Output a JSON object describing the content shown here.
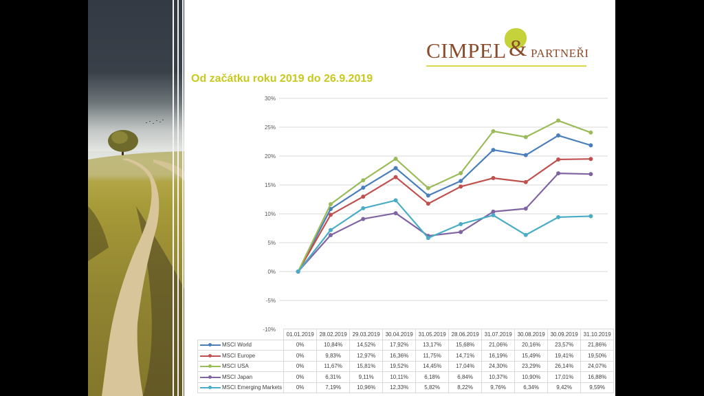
{
  "slide": {
    "title": "Od začátku roku 2019 do 26.9.2019"
  },
  "logo": {
    "brand": "CIMPEL",
    "amp": "&",
    "partners": "PARTNEŘI"
  },
  "chart_data": {
    "type": "line",
    "title": "Od začátku roku 2019 do 26.9.2019",
    "xlabel": "",
    "ylabel": "",
    "ylim": [
      -0.1,
      0.3
    ],
    "yticks": [
      "30%",
      "25%",
      "20%",
      "15%",
      "10%",
      "5%",
      "0%",
      "-5%",
      "-10%"
    ],
    "ytick_values": [
      0.3,
      0.25,
      0.2,
      0.15,
      0.1,
      0.05,
      0,
      -0.05,
      -0.1
    ],
    "grid": true,
    "legend": "data-table-bottom",
    "categories": [
      "01.01.2019",
      "28.02.2019",
      "29.03.2019",
      "30.04.2019",
      "31.05.2019",
      "28.06.2019",
      "31.07.2019",
      "30.08.2019",
      "30.09.2019",
      "31.10.2019"
    ],
    "series": [
      {
        "name": "MSCI World",
        "color": "#4a7ebb",
        "values": [
          0,
          0.1084,
          0.1452,
          0.1792,
          0.1317,
          0.1568,
          0.2106,
          0.2016,
          0.2357,
          0.2186
        ],
        "labels": [
          "0%",
          "10,84%",
          "14,52%",
          "17,92%",
          "13,17%",
          "15,68%",
          "21,06%",
          "20,16%",
          "23,57%",
          "21,86%"
        ]
      },
      {
        "name": "MSCI Europe",
        "color": "#c0504d",
        "values": [
          0,
          0.0983,
          0.1297,
          0.1636,
          0.1175,
          0.1471,
          0.1619,
          0.1549,
          0.1941,
          0.195
        ],
        "labels": [
          "0%",
          "9,83%",
          "12,97%",
          "16,36%",
          "11,75%",
          "14,71%",
          "16,19%",
          "15,49%",
          "19,41%",
          "19,50%"
        ]
      },
      {
        "name": "MSCI USA",
        "color": "#9bbb59",
        "values": [
          0,
          0.1167,
          0.1581,
          0.1952,
          0.1445,
          0.1704,
          0.243,
          0.2329,
          0.2614,
          0.2407
        ],
        "labels": [
          "0%",
          "11,67%",
          "15,81%",
          "19,52%",
          "14,45%",
          "17,04%",
          "24,30%",
          "23,29%",
          "26,14%",
          "24,07%"
        ]
      },
      {
        "name": "MSCI Japan",
        "color": "#8064a2",
        "values": [
          0,
          0.0631,
          0.0911,
          0.1011,
          0.0618,
          0.0684,
          0.1037,
          0.109,
          0.1701,
          0.1688
        ],
        "labels": [
          "0%",
          "6,31%",
          "9,11%",
          "10,11%",
          "6,18%",
          "6,84%",
          "10,37%",
          "10,90%",
          "17,01%",
          "16,88%"
        ]
      },
      {
        "name": "MSCI Emerging Markets",
        "color": "#4bacc6",
        "values": [
          0,
          0.0719,
          0.1096,
          0.1233,
          0.0582,
          0.0822,
          0.0976,
          0.0634,
          0.0942,
          0.0959
        ],
        "labels": [
          "0%",
          "7,19%",
          "10,96%",
          "12,33%",
          "5,82%",
          "8,22%",
          "9,76%",
          "6,34%",
          "9,42%",
          "9,59%"
        ]
      }
    ]
  }
}
